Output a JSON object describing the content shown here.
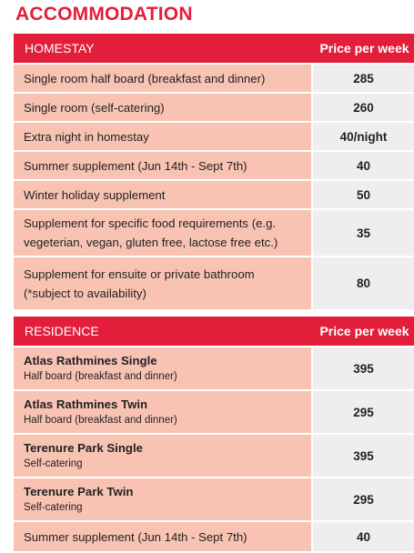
{
  "page_title": "ACCOMMODATION",
  "homestay": {
    "header": {
      "name": "HOMESTAY",
      "price": "Price per week"
    },
    "rows": [
      {
        "name": "Single room half board (breakfast and dinner)",
        "price": "285"
      },
      {
        "name": "Single room (self-catering)",
        "price": "260"
      },
      {
        "name": "Extra night in homestay",
        "price": "40/night"
      },
      {
        "name": "Summer supplement (Jun 14th - Sept 7th)",
        "price": "40"
      },
      {
        "name": "Winter holiday supplement",
        "price": "50"
      },
      {
        "name_line1": "Supplement for specific food requirements (e.g.",
        "name_line2": "vegeterian, vegan, gluten free, lactose free etc.)",
        "price": "35"
      },
      {
        "name_line1": "Supplement for ensuite or private bathroom",
        "name_line2": "(*subject to availability)",
        "price": "80"
      }
    ]
  },
  "residence": {
    "header": {
      "name": "RESIDENCE",
      "price": "Price per week"
    },
    "rows": [
      {
        "name": "Atlas Rathmines Single",
        "sub": "Half board (breakfast and dinner)",
        "price": "395"
      },
      {
        "name": "Atlas Rathmines Twin",
        "sub": "Half board (breakfast and dinner)",
        "price": "295"
      },
      {
        "name": "Terenure Park Single",
        "sub": "Self-catering",
        "price": "395"
      },
      {
        "name": "Terenure Park Twin",
        "sub": "Self-catering",
        "price": "295"
      },
      {
        "name": "Summer supplement (Jun 14th - Sept 7th)",
        "price": "40"
      }
    ]
  },
  "colors": {
    "accent": "#e21e3a",
    "name_cell": "#f9c3b4",
    "price_cell": "#eeeeee"
  }
}
